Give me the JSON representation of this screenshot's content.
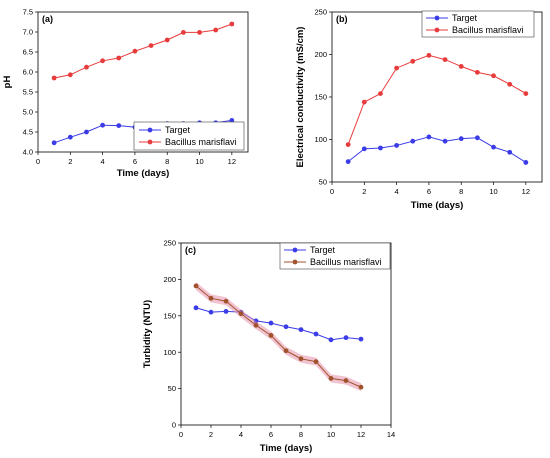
{
  "chart_data": [
    {
      "type": "line",
      "panel_label": "(a)",
      "xlabel": "Time (days)",
      "ylabel": "pH",
      "x": [
        1,
        2,
        3,
        4,
        5,
        6,
        7,
        8,
        9,
        10,
        11,
        12
      ],
      "xlim": [
        0,
        13
      ],
      "ylim": [
        4.0,
        7.5
      ],
      "xticks": [
        0,
        2,
        4,
        6,
        8,
        10,
        12
      ],
      "yticks": [
        4.0,
        4.5,
        5.0,
        5.5,
        6.0,
        6.5,
        7.0,
        7.5
      ],
      "ytick_decimals": 1,
      "legend_position": "bottom-right",
      "series": [
        {
          "name": "Target",
          "color": "#3b3be8",
          "shade": false,
          "values": [
            4.23,
            4.37,
            4.5,
            4.67,
            4.66,
            4.62,
            4.52,
            4.71,
            4.71,
            4.73,
            4.73,
            4.79
          ]
        },
        {
          "name": "Bacillus marisflavi",
          "color": "#e83b3b",
          "shade": false,
          "values": [
            5.85,
            5.93,
            6.12,
            6.28,
            6.35,
            6.52,
            6.66,
            6.8,
            6.99,
            6.99,
            7.05,
            7.2
          ]
        }
      ]
    },
    {
      "type": "line",
      "panel_label": "(b)",
      "xlabel": "Time (days)",
      "ylabel": "Electrical conductivity (mS/cm)",
      "x": [
        1,
        2,
        3,
        4,
        5,
        6,
        7,
        8,
        9,
        10,
        11,
        12
      ],
      "xlim": [
        0,
        13
      ],
      "ylim": [
        50,
        250
      ],
      "xticks": [
        0,
        2,
        4,
        6,
        8,
        10,
        12
      ],
      "yticks": [
        50,
        100,
        150,
        200,
        250
      ],
      "ytick_decimals": 0,
      "legend_position": "top-left",
      "series": [
        {
          "name": "Target",
          "color": "#3b3be8",
          "shade": false,
          "values": [
            74,
            89,
            90,
            93,
            98,
            103,
            98,
            101,
            102,
            91,
            85,
            73
          ]
        },
        {
          "name": "Bacillus marisflavi",
          "color": "#e83b3b",
          "shade": false,
          "values": [
            94,
            144,
            154,
            184,
            192,
            199,
            194,
            186,
            179,
            175,
            165,
            154
          ]
        }
      ]
    },
    {
      "type": "line",
      "panel_label": "(c)",
      "xlabel": "Time (days)",
      "ylabel": "Turbidity (NTU)",
      "x": [
        1,
        2,
        3,
        4,
        5,
        6,
        7,
        8,
        9,
        10,
        11,
        12
      ],
      "xlim": [
        0,
        14
      ],
      "ylim": [
        0,
        250
      ],
      "xticks": [
        0,
        2,
        4,
        6,
        8,
        10,
        12,
        14
      ],
      "yticks": [
        0,
        50,
        100,
        150,
        200,
        250
      ],
      "ytick_decimals": 0,
      "legend_position": "top-right",
      "series": [
        {
          "name": "Target",
          "color": "#3b3be8",
          "shade": false,
          "values": [
            161,
            155,
            156,
            155,
            143,
            140,
            135,
            131,
            125,
            117,
            120,
            118
          ]
        },
        {
          "name": "Bacillus marisflavi",
          "color": "#a0522d",
          "shade": true,
          "values": [
            191,
            174,
            170,
            153,
            137,
            123,
            102,
            91,
            87,
            64,
            61,
            52
          ]
        }
      ]
    }
  ]
}
